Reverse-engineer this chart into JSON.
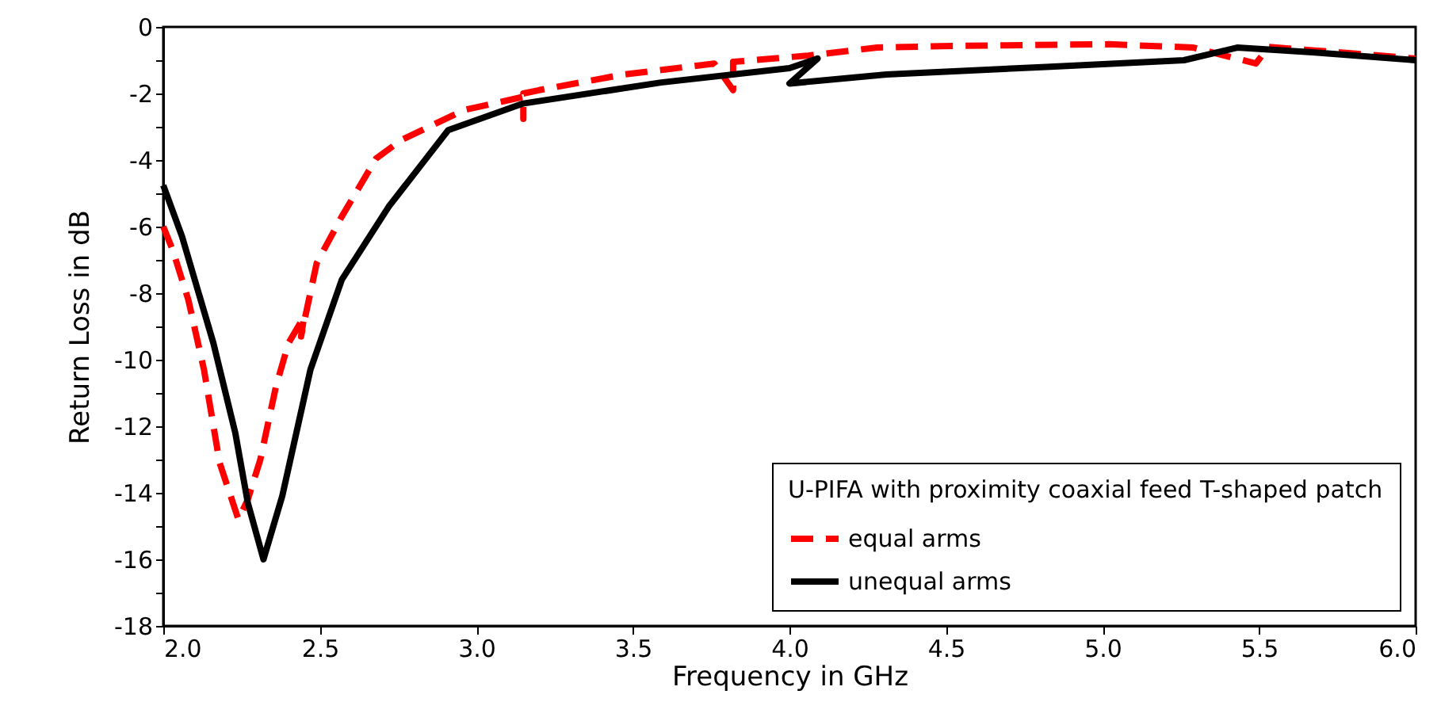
{
  "chart_data": {
    "type": "line",
    "xlabel": "Frequency in GHz",
    "ylabel": "Return Loss in dB",
    "legend_title": "U-PIFA with proximity coaxial feed T-shaped patch",
    "legend": "bottom right",
    "grid": false,
    "xlim": [
      2,
      6
    ],
    "ylim": [
      -18,
      0
    ],
    "xticks": [
      {
        "value": 2,
        "label": "2.0"
      },
      {
        "value": 2.5,
        "label": "2.5"
      },
      {
        "value": 3,
        "label": "3.0"
      },
      {
        "value": 3.5,
        "label": "3.5"
      },
      {
        "value": 4,
        "label": "4.0"
      },
      {
        "value": 4.5,
        "label": "4.5"
      },
      {
        "value": 5,
        "label": "5.0"
      },
      {
        "value": 5.5,
        "label": "5.5"
      },
      {
        "value": 6,
        "label": "6.0"
      }
    ],
    "yticks": [
      -18,
      {
        "value": -17,
        "label": null
      },
      -16,
      {
        "value": -15,
        "label": null
      },
      -14,
      {
        "value": -13,
        "label": null
      },
      -12,
      {
        "value": -11,
        "label": null
      },
      -10,
      {
        "value": -9,
        "label": null
      },
      -8,
      {
        "value": -7,
        "label": null
      },
      -6,
      {
        "value": -5,
        "label": null
      },
      -4,
      {
        "value": -3,
        "label": null
      },
      -2,
      {
        "value": -1,
        "label": null
      },
      0
    ],
    "series": [
      {
        "name": "equal arms",
        "color": "#ff0000",
        "line_style": "dashed",
        "x": [
          2.0,
          2.03,
          2.08,
          2.13,
          2.18,
          2.24,
          2.27,
          2.31,
          2.36,
          2.4,
          2.45,
          2.44,
          2.49,
          2.57,
          2.68,
          2.76,
          2.96,
          3.15,
          3.15,
          3.15,
          3.2,
          3.47,
          3.76,
          3.82,
          3.82,
          4.06,
          4.28,
          4.52,
          5.02,
          5.29,
          5.49,
          5.53,
          5.75,
          6.0
        ],
        "values": [
          -6.0,
          -6.7,
          -8.2,
          -10.3,
          -13.1,
          -14.8,
          -14.2,
          -13.0,
          -10.8,
          -9.5,
          -8.7,
          -9.3,
          -7.1,
          -5.7,
          -3.95,
          -3.4,
          -2.5,
          -2.1,
          -2.76,
          -2.0,
          -1.9,
          -1.43,
          -1.1,
          -1.9,
          -1.05,
          -0.86,
          -0.62,
          -0.57,
          -0.52,
          -0.62,
          -1.1,
          -0.6,
          -0.76,
          -0.95
        ]
      },
      {
        "name": "unequal arms",
        "color": "#000000",
        "line_style": "solid",
        "x": [
          2.0,
          2.06,
          2.16,
          2.23,
          2.27,
          2.32,
          2.38,
          2.47,
          2.57,
          2.72,
          2.84,
          2.91,
          3.15,
          3.59,
          4.0,
          4.09,
          4.0,
          4.31,
          4.82,
          5.26,
          5.43,
          5.67,
          6.0
        ],
        "values": [
          -4.76,
          -6.3,
          -9.5,
          -12.2,
          -14.3,
          -16.0,
          -14.1,
          -10.3,
          -7.6,
          -5.4,
          -3.95,
          -3.1,
          -2.3,
          -1.67,
          -1.24,
          -0.95,
          -1.7,
          -1.43,
          -1.2,
          -1.0,
          -0.62,
          -0.76,
          -1.0
        ]
      }
    ]
  }
}
